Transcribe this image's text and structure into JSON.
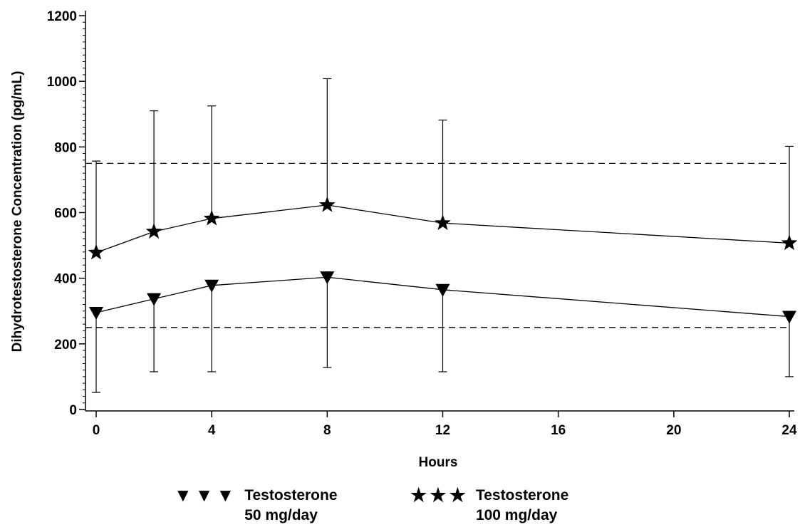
{
  "chart_data": {
    "type": "line",
    "xlabel": "Hours",
    "ylabel": "Dihydrotestosterone Concentration (pg/mL)",
    "xlim": [
      0,
      24
    ],
    "ylim": [
      0,
      1200
    ],
    "x_ticks": [
      "0",
      "4",
      "8",
      "12",
      "16",
      "20",
      "24"
    ],
    "y_ticks": [
      "0",
      "200",
      "400",
      "600",
      "800",
      "1000",
      "1200"
    ],
    "x_tick_values": [
      0,
      4,
      8,
      12,
      16,
      20,
      24
    ],
    "y_tick_values": [
      0,
      200,
      400,
      600,
      800,
      1000,
      1200
    ],
    "reference_lines": [
      250,
      750
    ],
    "grid": false,
    "legend_position": "bottom",
    "series": [
      {
        "name_line1": "Testosterone",
        "name_line2": "50 mg/day",
        "marker": "triangle-down",
        "x": [
          0,
          2,
          4,
          8,
          12,
          24
        ],
        "y": [
          295,
          337,
          378,
          403,
          365,
          283
        ],
        "err_low": [
          52,
          115,
          115,
          128,
          115,
          100
        ],
        "err_high": [
          null,
          null,
          null,
          null,
          null,
          null
        ]
      },
      {
        "name_line1": "Testosterone",
        "name_line2": "100 mg/day",
        "marker": "star",
        "x": [
          0,
          2,
          4,
          8,
          12,
          24
        ],
        "y": [
          478,
          542,
          582,
          623,
          568,
          507
        ],
        "err_low": [
          null,
          null,
          null,
          null,
          null,
          null
        ],
        "err_high": [
          757,
          910,
          925,
          1008,
          882,
          802
        ]
      }
    ]
  },
  "legend": {
    "items": [
      {
        "symbols": "▼▼▼",
        "line1": "Testosterone",
        "line2": "50 mg/day"
      },
      {
        "symbols": "★★★",
        "line1": "Testosterone",
        "line2": "100 mg/day"
      }
    ]
  }
}
